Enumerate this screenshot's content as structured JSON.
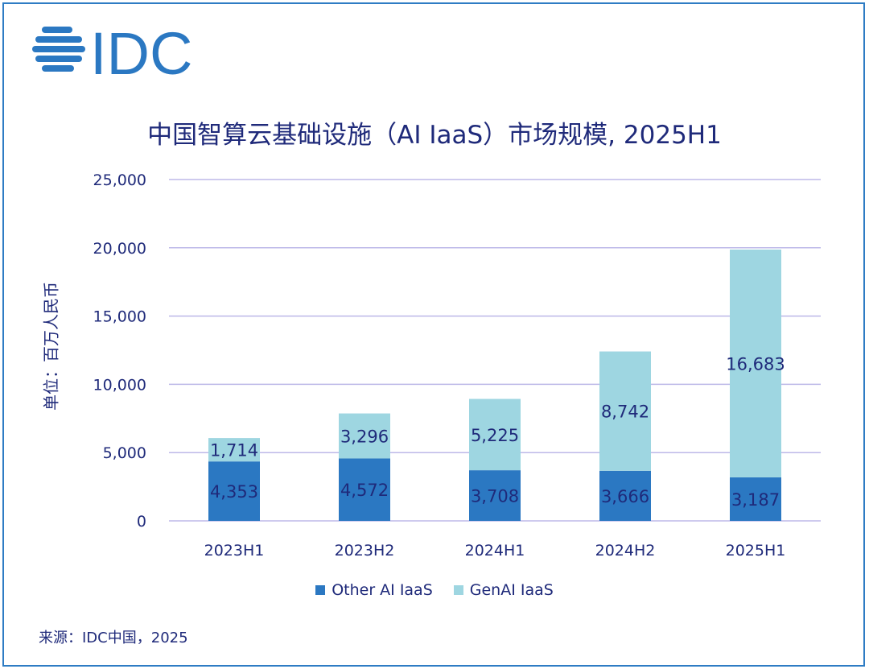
{
  "logo_text": "IDC",
  "colors": {
    "other": "#2b78c2",
    "genai": "#9ed6e1",
    "text": "#1f2a7a",
    "grid": "#bdb8e8",
    "frame": "#2e7cc4"
  },
  "chart_data": {
    "type": "bar",
    "stacked": true,
    "title": "中国智算云基础设施（AI IaaS）市场规模, 2025H1",
    "ylabel": "单位：百万人民币",
    "xlabel": "",
    "categories": [
      "2023H1",
      "2023H2",
      "2024H1",
      "2024H2",
      "2025H1"
    ],
    "series": [
      {
        "name": "Other AI IaaS",
        "values": [
          4353,
          4572,
          3708,
          3666,
          3187
        ],
        "labels": [
          "4,353",
          "4,572",
          "3,708",
          "3,666",
          "3,187"
        ]
      },
      {
        "name": "GenAI IaaS",
        "values": [
          1714,
          3296,
          5225,
          8742,
          16683
        ],
        "labels": [
          "1,714",
          "3,296",
          "5,225",
          "8,742",
          "16,683"
        ]
      }
    ],
    "ylim": [
      0,
      25000
    ],
    "yticks": [
      0,
      5000,
      10000,
      15000,
      20000,
      25000
    ],
    "ytick_labels": [
      "0",
      "5,000",
      "10,000",
      "15,000",
      "20,000",
      "25,000"
    ],
    "grid": true,
    "legend": "bottom"
  },
  "source": "来源：IDC中国，2025"
}
